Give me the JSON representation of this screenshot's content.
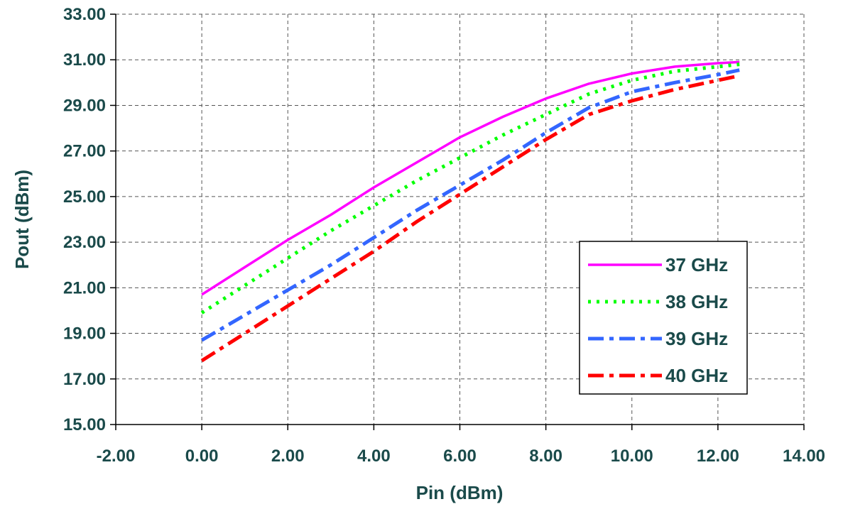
{
  "chart_data": {
    "type": "line",
    "title": "",
    "xlabel": "Pin (dBm)",
    "ylabel": "Pout (dBm)",
    "xlim": [
      -2,
      14
    ],
    "ylim": [
      15,
      33
    ],
    "x_ticks": [
      -2,
      0,
      2,
      4,
      6,
      8,
      10,
      12,
      14
    ],
    "y_ticks": [
      15,
      17,
      19,
      21,
      23,
      25,
      27,
      29,
      31,
      33
    ],
    "x_tick_labels": [
      "-2.00",
      "0.00",
      "2.00",
      "4.00",
      "6.00",
      "8.00",
      "10.00",
      "12.00",
      "14.00"
    ],
    "y_tick_labels": [
      "15.00",
      "17.00",
      "19.00",
      "21.00",
      "23.00",
      "25.00",
      "27.00",
      "29.00",
      "31.00",
      "33.00"
    ],
    "grid": true,
    "legend_position": "bottom-right",
    "series": [
      {
        "name": "37 GHz",
        "color": "#ff00ff",
        "dash": "solid",
        "x": [
          0,
          1,
          2,
          3,
          4,
          5,
          6,
          7,
          8,
          9,
          10,
          11,
          12,
          12.5
        ],
        "y": [
          20.7,
          21.9,
          23.1,
          24.2,
          25.4,
          26.5,
          27.6,
          28.5,
          29.3,
          29.95,
          30.4,
          30.7,
          30.85,
          30.9
        ]
      },
      {
        "name": "38 GHz",
        "color": "#00ff00",
        "dash": "dotted",
        "x": [
          0,
          1,
          2,
          3,
          4,
          5,
          6,
          7,
          8,
          9,
          10,
          11,
          12,
          12.5
        ],
        "y": [
          19.9,
          21.1,
          22.3,
          23.5,
          24.6,
          25.7,
          26.7,
          27.7,
          28.6,
          29.5,
          30.1,
          30.5,
          30.7,
          30.8
        ]
      },
      {
        "name": "39 GHz",
        "color": "#3366ff",
        "dash": "dash-dot",
        "x": [
          0,
          1,
          2,
          3,
          4,
          5,
          6,
          7,
          8,
          9,
          10,
          11,
          12,
          12.5
        ],
        "y": [
          18.7,
          19.8,
          20.9,
          22.0,
          23.2,
          24.4,
          25.5,
          26.6,
          27.8,
          28.9,
          29.6,
          30.0,
          30.35,
          30.55
        ]
      },
      {
        "name": "40 GHz",
        "color": "#ff0000",
        "dash": "dash-dot",
        "x": [
          0,
          1,
          2,
          3,
          4,
          5,
          6,
          7,
          8,
          9,
          10,
          11,
          12,
          12.5
        ],
        "y": [
          17.8,
          19.0,
          20.2,
          21.4,
          22.6,
          23.9,
          25.1,
          26.3,
          27.5,
          28.6,
          29.2,
          29.7,
          30.1,
          30.3
        ]
      }
    ]
  }
}
